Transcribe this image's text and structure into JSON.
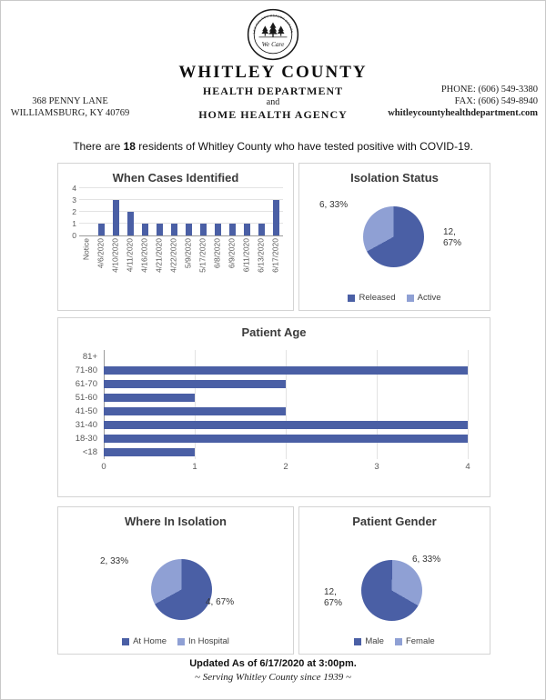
{
  "header": {
    "title": "WHITLEY COUNTY",
    "subtitle1": "HEALTH DEPARTMENT",
    "conjunction": "and",
    "subtitle2": "HOME HEALTH AGENCY",
    "address_line1": "368 PENNY LANE",
    "address_line2": "WILLIAMSBURG, KY 40769",
    "phone": "PHONE: (606) 549-3380",
    "fax": "FAX: (606) 549-8940",
    "website": "whitleycountyhealthdepartment.com",
    "logo": {
      "arc_text": "WHITLEY COUNTY HEALTH DEPARTMENT",
      "script_text": "We Care"
    }
  },
  "summary": {
    "prefix": "There are ",
    "count": "18",
    "suffix": " residents of Whitley County who have tested positive with COVID-19."
  },
  "footer": {
    "updated": "Updated As of 6/17/2020 at 3:00pm.",
    "tagline": "~ Serving Whitley County since 1939 ~"
  },
  "colors": {
    "primary_blue": "#4a5fa5",
    "light_blue": "#8fa0d4"
  },
  "chart_data": [
    {
      "id": "cases_identified",
      "type": "bar",
      "title": "When Cases Identified",
      "categories": [
        "Notice",
        "4/6/2020",
        "4/10/2020",
        "4/11/2020",
        "4/16/2020",
        "4/21/2020",
        "4/22/2020",
        "5/9/2020",
        "5/17/2020",
        "6/8/2020",
        "6/9/2020",
        "6/11/2020",
        "6/13/2020",
        "6/17/2020"
      ],
      "values": [
        0,
        1,
        3,
        2,
        1,
        1,
        1,
        1,
        1,
        1,
        1,
        1,
        1,
        3
      ],
      "ylim": [
        0,
        4
      ],
      "yticks": [
        0,
        1,
        2,
        3,
        4
      ],
      "grid": true,
      "legend": "none"
    },
    {
      "id": "isolation_status",
      "type": "pie",
      "title": "Isolation Status",
      "rotation": 0,
      "slices": [
        {
          "label": "Released",
          "value": 12,
          "pct": 67,
          "color": "dark",
          "data_label": "12, 67%"
        },
        {
          "label": "Active",
          "value": 6,
          "pct": 33,
          "color": "light",
          "data_label": "6, 33%"
        }
      ],
      "legend_position": "bottom"
    },
    {
      "id": "patient_age",
      "type": "bar_horizontal",
      "title": "Patient Age",
      "categories": [
        "81+",
        "71-80",
        "61-70",
        "51-60",
        "41-50",
        "31-40",
        "18-30",
        "<18"
      ],
      "values": [
        0,
        4,
        2,
        1,
        2,
        4,
        4,
        1
      ],
      "xlim": [
        0,
        4
      ],
      "xticks": [
        0,
        1,
        2,
        3,
        4
      ],
      "grid": true,
      "legend": "none"
    },
    {
      "id": "where_in_isolation",
      "type": "pie",
      "title": "Where In Isolation",
      "rotation": 0,
      "slices": [
        {
          "label": "At Home",
          "value": 4,
          "pct": 67,
          "color": "dark",
          "data_label": "4, 67%"
        },
        {
          "label": "In Hospital",
          "value": 2,
          "pct": 33,
          "color": "light",
          "data_label": "2, 33%"
        }
      ],
      "legend_position": "bottom"
    },
    {
      "id": "patient_gender",
      "type": "pie",
      "title": "Patient Gender",
      "rotation": 120,
      "slices": [
        {
          "label": "Male",
          "value": 12,
          "pct": 67,
          "color": "dark",
          "data_label": "12, 67%"
        },
        {
          "label": "Female",
          "value": 6,
          "pct": 33,
          "color": "light",
          "data_label": "6, 33%"
        }
      ],
      "legend_position": "bottom"
    }
  ]
}
